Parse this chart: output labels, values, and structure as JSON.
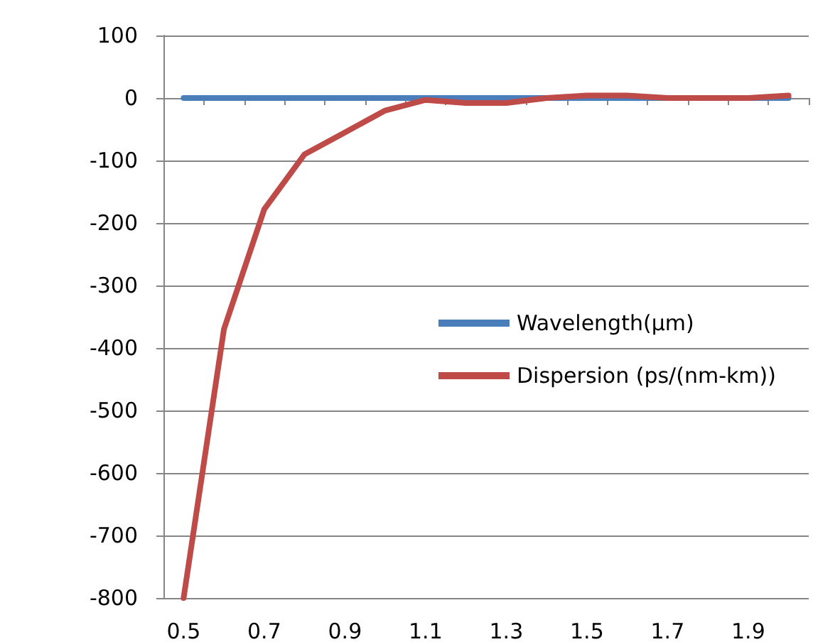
{
  "chart_data": {
    "type": "line",
    "categories": [
      "0.5",
      null,
      "0.7",
      null,
      "0.9",
      null,
      "1.1",
      null,
      "1.3",
      null,
      "1.5",
      null,
      "1.7",
      null,
      "1.9",
      null
    ],
    "series": [
      {
        "name": "Wavelength(µm)",
        "color": "#4a7ebb",
        "values": [
          0,
          0,
          0,
          0,
          0,
          0,
          0,
          0,
          0,
          0,
          0,
          0,
          0,
          0,
          0,
          0
        ]
      },
      {
        "name": "Dispersion (ps/(nm-km))",
        "color": "#be4b48",
        "values": [
          -800,
          -370,
          -178,
          -90,
          -55,
          -20,
          -3,
          -8,
          -8,
          0,
          4,
          4,
          0,
          0,
          0,
          4
        ]
      }
    ],
    "ylim": [
      -800,
      100
    ],
    "yticks": [
      -800,
      -700,
      -600,
      -500,
      -400,
      -300,
      -200,
      -100,
      0,
      100
    ],
    "grid": "y",
    "legend": "right",
    "marker": "none",
    "line_style": "solid"
  }
}
